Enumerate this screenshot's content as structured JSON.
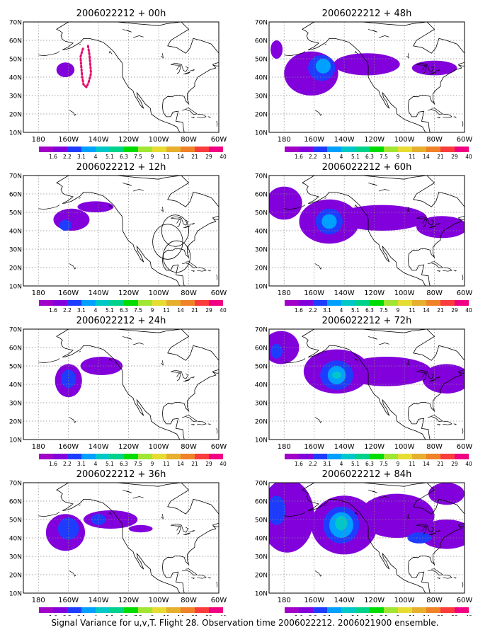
{
  "caption": "Signal Variance for u,v,T. Flight 28. Observation time 2006022212. 2006021900 ensemble.",
  "lat_labels": [
    "70N",
    "60N",
    "50N",
    "40N",
    "30N",
    "20N",
    "10N"
  ],
  "lon_labels": [
    "180",
    "160W",
    "140W",
    "120W",
    "100W",
    "80W",
    "60W"
  ],
  "colorbar": {
    "labels": [
      "1.6",
      "2.2",
      "3.1",
      "4",
      "5.1",
      "6.3",
      "7.5",
      "9",
      "11",
      "14",
      "21",
      "29",
      "40"
    ],
    "colors": [
      "#a000c8",
      "#8200dc",
      "#1e3cff",
      "#00a0ff",
      "#00c8c8",
      "#00d28c",
      "#00dc00",
      "#a0e632",
      "#e6dc32",
      "#e6af2d",
      "#f08228",
      "#fa3c3c",
      "#f00082"
    ]
  },
  "map_extent": {
    "lon": [
      -190,
      -60
    ],
    "lat": [
      10,
      70
    ]
  },
  "panels": [
    {
      "title": "2006022212 + 00h",
      "track": true,
      "circles": false,
      "blobs": [
        {
          "lon": -162,
          "lat": 44,
          "rlon": 6,
          "rlat": 4,
          "level": 1
        }
      ]
    },
    {
      "title": "2006022212 + 12h",
      "track": false,
      "circles": true,
      "blobs": [
        {
          "lon": -158,
          "lat": 46,
          "rlon": 12,
          "rlat": 6,
          "level": 1
        },
        {
          "lon": -142,
          "lat": 53,
          "rlon": 12,
          "rlat": 3,
          "level": 1
        },
        {
          "lon": -162,
          "lat": 43,
          "rlon": 4,
          "rlat": 3,
          "level": 2
        }
      ]
    },
    {
      "title": "2006022212 + 24h",
      "track": false,
      "circles": false,
      "blobs": [
        {
          "lon": -160,
          "lat": 42,
          "rlon": 9,
          "rlat": 9,
          "level": 1
        },
        {
          "lon": -138,
          "lat": 50,
          "rlon": 14,
          "rlat": 5,
          "level": 1
        },
        {
          "lon": -160,
          "lat": 43,
          "rlon": 5,
          "rlat": 5,
          "level": 2
        }
      ]
    },
    {
      "title": "2006022212 + 36h",
      "track": false,
      "circles": false,
      "blobs": [
        {
          "lon": -162,
          "lat": 43,
          "rlon": 13,
          "rlat": 10,
          "level": 1
        },
        {
          "lon": -132,
          "lat": 50,
          "rlon": 18,
          "rlat": 5,
          "level": 1
        },
        {
          "lon": -112,
          "lat": 45,
          "rlon": 8,
          "rlat": 2,
          "level": 1
        },
        {
          "lon": -160,
          "lat": 45,
          "rlon": 7,
          "rlat": 6,
          "level": 2
        },
        {
          "lon": -140,
          "lat": 50,
          "rlon": 5,
          "rlat": 3,
          "level": 2
        }
      ]
    },
    {
      "title": "2006022212 + 48h",
      "track": false,
      "circles": false,
      "blobs": [
        {
          "lon": -162,
          "lat": 42,
          "rlon": 18,
          "rlat": 12,
          "level": 1
        },
        {
          "lon": -125,
          "lat": 47,
          "rlon": 22,
          "rlat": 6,
          "level": 1
        },
        {
          "lon": -80,
          "lat": 45,
          "rlon": 15,
          "rlat": 4,
          "level": 1
        },
        {
          "lon": -185,
          "lat": 55,
          "rlon": 4,
          "rlat": 5,
          "level": 1
        },
        {
          "lon": -155,
          "lat": 45,
          "rlon": 9,
          "rlat": 7,
          "level": 2
        },
        {
          "lon": -154,
          "lat": 46,
          "rlon": 5,
          "rlat": 4,
          "level": 3
        }
      ]
    },
    {
      "title": "2006022212 + 60h",
      "track": false,
      "circles": false,
      "blobs": [
        {
          "lon": -180,
          "lat": 55,
          "rlon": 12,
          "rlat": 9,
          "level": 1
        },
        {
          "lon": -150,
          "lat": 45,
          "rlon": 20,
          "rlat": 12,
          "level": 1
        },
        {
          "lon": -115,
          "lat": 47,
          "rlon": 30,
          "rlat": 7,
          "level": 1
        },
        {
          "lon": -75,
          "lat": 42,
          "rlon": 17,
          "rlat": 6,
          "level": 1
        },
        {
          "lon": -150,
          "lat": 45,
          "rlon": 9,
          "rlat": 7,
          "level": 2
        },
        {
          "lon": -150,
          "lat": 45,
          "rlon": 5,
          "rlat": 4,
          "level": 3
        }
      ]
    },
    {
      "title": "2006022212 + 72h",
      "track": false,
      "circles": false,
      "blobs": [
        {
          "lon": -182,
          "lat": 60,
          "rlon": 12,
          "rlat": 9,
          "level": 1
        },
        {
          "lon": -145,
          "lat": 47,
          "rlon": 22,
          "rlat": 12,
          "level": 1
        },
        {
          "lon": -112,
          "lat": 47,
          "rlon": 30,
          "rlat": 8,
          "level": 1
        },
        {
          "lon": -72,
          "lat": 43,
          "rlon": 16,
          "rlat": 8,
          "level": 1
        },
        {
          "lon": -185,
          "lat": 58,
          "rlon": 4,
          "rlat": 4,
          "level": 2
        },
        {
          "lon": -145,
          "lat": 45,
          "rlon": 11,
          "rlat": 8,
          "level": 2
        },
        {
          "lon": -145,
          "lat": 45,
          "rlon": 6,
          "rlat": 5,
          "level": 3
        },
        {
          "lon": -145,
          "lat": 45,
          "rlon": 3,
          "rlat": 2,
          "level": 4
        }
      ]
    },
    {
      "title": "2006022212 + 84h",
      "track": false,
      "circles": false,
      "blobs": [
        {
          "lon": -178,
          "lat": 52,
          "rlon": 18,
          "rlat": 20,
          "level": 1
        },
        {
          "lon": -140,
          "lat": 47,
          "rlon": 22,
          "rlat": 16,
          "level": 1
        },
        {
          "lon": -105,
          "lat": 52,
          "rlon": 25,
          "rlat": 12,
          "level": 1
        },
        {
          "lon": -72,
          "lat": 42,
          "rlon": 18,
          "rlat": 8,
          "level": 1
        },
        {
          "lon": -72,
          "lat": 64,
          "rlon": 12,
          "rlat": 6,
          "level": 1
        },
        {
          "lon": -185,
          "lat": 55,
          "rlon": 6,
          "rlat": 8,
          "level": 2
        },
        {
          "lon": -142,
          "lat": 47,
          "rlon": 12,
          "rlat": 10,
          "level": 2
        },
        {
          "lon": -90,
          "lat": 40,
          "rlon": 8,
          "rlat": 3,
          "level": 2
        },
        {
          "lon": -142,
          "lat": 47,
          "rlon": 8,
          "rlat": 7,
          "level": 3
        },
        {
          "lon": -142,
          "lat": 48,
          "rlon": 4,
          "rlat": 4,
          "level": 4
        }
      ]
    }
  ]
}
